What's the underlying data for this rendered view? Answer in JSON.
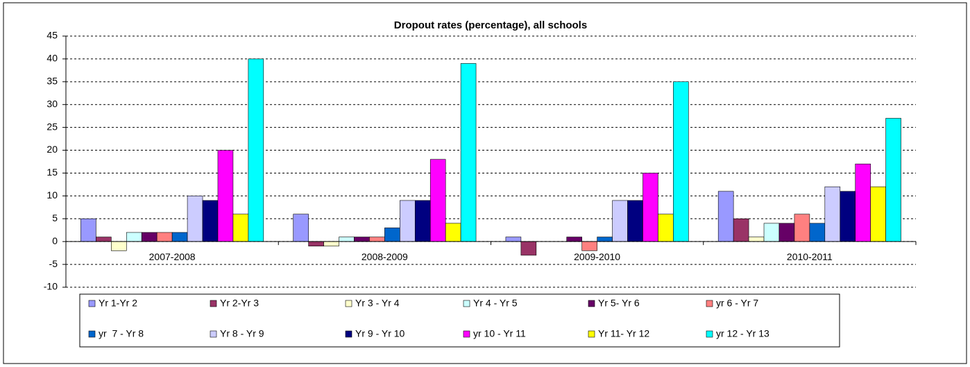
{
  "chart_data": {
    "type": "bar",
    "title": "Dropout rates (percentage), all schools",
    "categories": [
      "2007-2008",
      "2008-2009",
      "2009-2010",
      "2010-2011"
    ],
    "series": [
      {
        "name": "Yr 1-Yr 2",
        "color": "#9999ff",
        "values": [
          5,
          6,
          1,
          11
        ]
      },
      {
        "name": "Yr 2-Yr 3",
        "color": "#993366",
        "values": [
          1,
          -1,
          -3,
          5
        ]
      },
      {
        "name": "Yr 3 - Yr 4",
        "color": "#ffffcc",
        "values": [
          -2,
          -1,
          0,
          1
        ]
      },
      {
        "name": "Yr 4 - Yr 5",
        "color": "#ccffff",
        "values": [
          2,
          1,
          0,
          4
        ]
      },
      {
        "name": "Yr 5- Yr 6",
        "color": "#660066",
        "values": [
          2,
          1,
          1,
          4
        ]
      },
      {
        "name": "yr 6 - Yr 7",
        "color": "#ff8080",
        "values": [
          2,
          1,
          -2,
          6
        ]
      },
      {
        "name": "yr  7 - Yr 8",
        "color": "#0066cc",
        "values": [
          2,
          3,
          1,
          4
        ]
      },
      {
        "name": "Yr 8 - Yr 9",
        "color": "#ccccff",
        "values": [
          10,
          9,
          9,
          12
        ]
      },
      {
        "name": "Yr 9 - Yr 10",
        "color": "#000080",
        "values": [
          9,
          9,
          9,
          11
        ]
      },
      {
        "name": "yr 10 - Yr 11",
        "color": "#ff00ff",
        "values": [
          20,
          18,
          15,
          17
        ]
      },
      {
        "name": "Yr 11- Yr 12",
        "color": "#ffff00",
        "values": [
          6,
          4,
          6,
          12
        ]
      },
      {
        "name": "yr 12 - Yr 13",
        "color": "#00ffff",
        "values": [
          40,
          39,
          35,
          27
        ]
      }
    ],
    "ylim": [
      -10,
      45
    ],
    "yticks": [
      -10,
      -5,
      0,
      5,
      10,
      15,
      20,
      25,
      30,
      35,
      40,
      45
    ],
    "grid": true
  }
}
